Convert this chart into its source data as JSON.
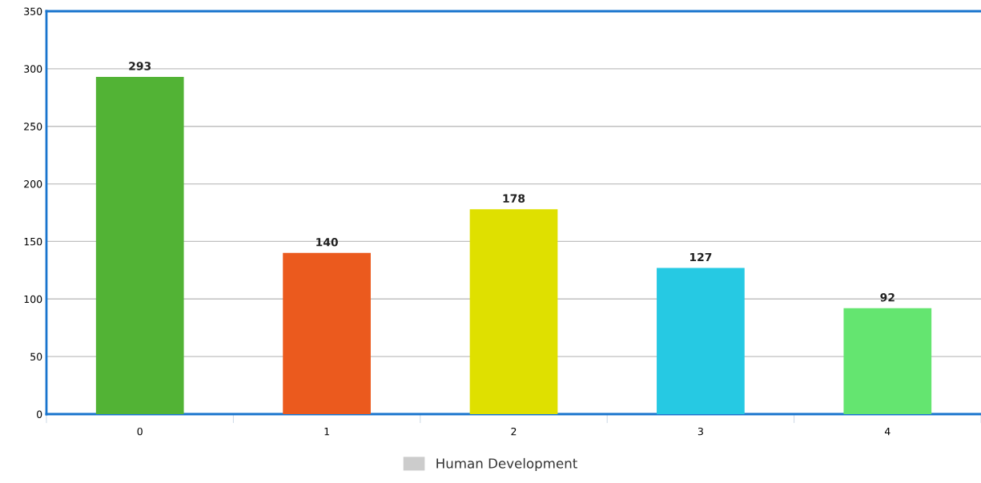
{
  "chart_data": {
    "type": "bar",
    "categories": [
      "0",
      "1",
      "2",
      "3",
      "4"
    ],
    "series": [
      {
        "name": "Human Development",
        "color": "#cccccc",
        "colors": [
          "#52b335",
          "#eb5a1e",
          "#dfe000",
          "#26c9e3",
          "#64e570"
        ],
        "values": [
          293,
          140,
          178,
          127,
          92
        ]
      }
    ],
    "ylim": [
      0,
      350
    ],
    "yticks": [
      0,
      50,
      100,
      150,
      200,
      250,
      300,
      350
    ],
    "grid": "y",
    "legend": "bottom",
    "data_labels": true
  }
}
